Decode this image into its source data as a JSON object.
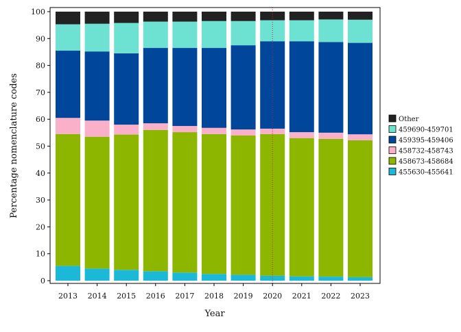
{
  "chart_data": {
    "type": "bar",
    "stacked": true,
    "title": "",
    "xlabel": "Year",
    "ylabel": "Percentage nomenclature codes",
    "ylim": [
      0,
      100
    ],
    "yticks": [
      0,
      10,
      20,
      30,
      40,
      50,
      60,
      70,
      80,
      90,
      100
    ],
    "grid": false,
    "legend_position": "right",
    "categories": [
      "2013",
      "2014",
      "2015",
      "2016",
      "2017",
      "2018",
      "2019",
      "2020",
      "2021",
      "2022",
      "2023"
    ],
    "series": [
      {
        "name": "455630-455641",
        "color": "#1cb8d8",
        "values": [
          5.5,
          4.5,
          4.0,
          3.5,
          3.0,
          2.5,
          2.2,
          1.8,
          1.6,
          1.5,
          1.3
        ]
      },
      {
        "name": "458673-458684",
        "color": "#8db600",
        "values": [
          49.0,
          49.0,
          50.3,
          52.5,
          52.2,
          52.0,
          51.8,
          52.7,
          51.4,
          51.2,
          50.9
        ]
      },
      {
        "name": "458732-458743",
        "color": "#f9b0c8",
        "values": [
          6.0,
          6.0,
          3.7,
          2.5,
          2.3,
          2.3,
          2.2,
          2.0,
          2.2,
          2.3,
          2.2
        ]
      },
      {
        "name": "459395-459406",
        "color": "#00479c",
        "values": [
          25.0,
          25.7,
          26.5,
          28.0,
          29.0,
          29.7,
          31.3,
          32.5,
          33.8,
          33.7,
          34.0
        ]
      },
      {
        "name": "459690-459701",
        "color": "#6de1d2",
        "values": [
          9.8,
          10.3,
          11.3,
          9.8,
          9.8,
          10.0,
          9.0,
          7.8,
          7.8,
          8.4,
          8.6
        ]
      },
      {
        "name": "Other",
        "color": "#222222",
        "values": [
          4.7,
          4.5,
          4.2,
          3.7,
          3.7,
          3.5,
          3.5,
          3.2,
          3.2,
          2.9,
          3.0
        ]
      }
    ],
    "legend_order": [
      "Other",
      "459690-459701",
      "459395-459406",
      "458732-458743",
      "458673-458684",
      "455630-455641"
    ],
    "annotations": [
      {
        "type": "vline",
        "x": "2020",
        "color": "#b03030",
        "style": "dotted"
      }
    ]
  }
}
